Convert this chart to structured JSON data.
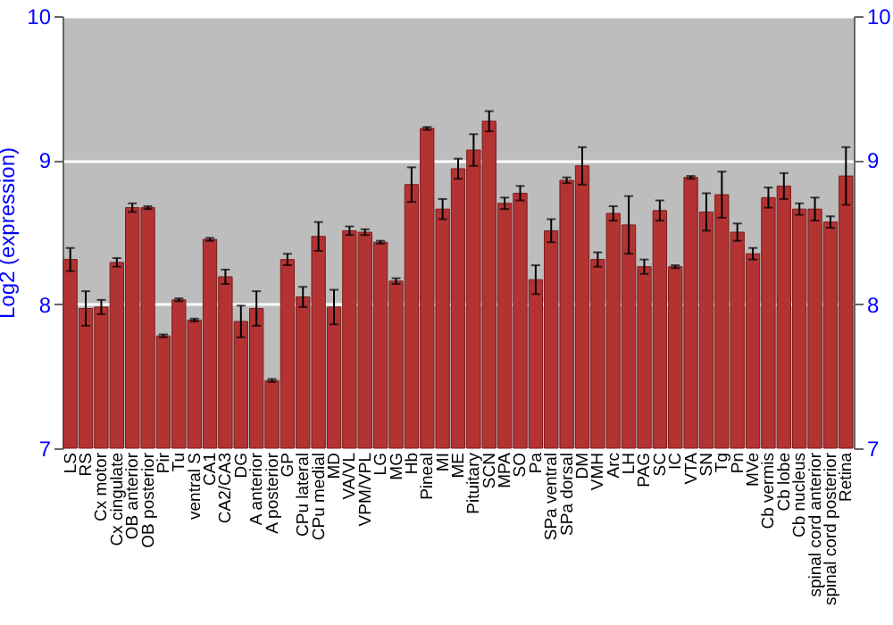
{
  "chart_data": {
    "type": "bar",
    "ylabel": "Log2 (expression)",
    "categories": [
      "LS",
      "RS",
      "Cx motor",
      "Cx cingulate",
      "OB anterior",
      "OB posterior",
      "Pir",
      "Tu",
      "ventral S",
      "CA1",
      "CA2/CA3",
      "DG",
      "A anterior",
      "A posterior",
      "GP",
      "CPu lateral",
      "CPu medial",
      "MD",
      "VA/VL",
      "VPM/VPL",
      "LG",
      "MG",
      "Hb",
      "Pineal",
      "MI",
      "ME",
      "Pituitary",
      "SCN",
      "MPA",
      "SO",
      "Pa",
      "SPa ventral",
      "SPa dorsal",
      "DM",
      "VMH",
      "Arc",
      "LH",
      "PAG",
      "SC",
      "IC",
      "VTA",
      "SN",
      "Tg",
      "Pn",
      "MVe",
      "Cb vermis",
      "Cb lobe",
      "Cb nucleus",
      "spinal cord anterior",
      "spinal cord posterior",
      "Retina"
    ],
    "values": [
      8.31,
      7.97,
      7.98,
      8.29,
      8.67,
      8.67,
      7.78,
      8.03,
      7.89,
      8.45,
      8.19,
      7.88,
      7.97,
      7.47,
      8.31,
      8.05,
      8.47,
      7.98,
      8.51,
      8.5,
      8.43,
      8.16,
      8.83,
      9.22,
      8.66,
      8.94,
      9.07,
      9.27,
      8.7,
      8.77,
      8.17,
      8.51,
      8.86,
      8.96,
      8.31,
      8.63,
      8.55,
      8.26,
      8.65,
      8.26,
      8.88,
      8.64,
      8.76,
      8.5,
      8.35,
      8.74,
      8.82,
      8.66,
      8.66,
      8.57,
      8.89
    ],
    "errors": [
      0.08,
      0.12,
      0.05,
      0.03,
      0.03,
      0.01,
      0.01,
      0.01,
      0.01,
      0.01,
      0.05,
      0.11,
      0.12,
      0.01,
      0.04,
      0.07,
      0.1,
      0.12,
      0.03,
      0.02,
      0.01,
      0.02,
      0.12,
      0.01,
      0.07,
      0.07,
      0.11,
      0.07,
      0.04,
      0.05,
      0.1,
      0.08,
      0.02,
      0.13,
      0.05,
      0.05,
      0.2,
      0.05,
      0.07,
      0.01,
      0.01,
      0.13,
      0.16,
      0.06,
      0.04,
      0.07,
      0.09,
      0.04,
      0.08,
      0.04,
      0.2
    ],
    "color": "#b33333",
    "ylim": [
      7,
      10
    ],
    "yticks": [
      7,
      8,
      9,
      10
    ],
    "y2lim": [
      7,
      10
    ],
    "y2ticks": [
      7,
      8,
      9,
      10
    ],
    "grid": "y"
  }
}
